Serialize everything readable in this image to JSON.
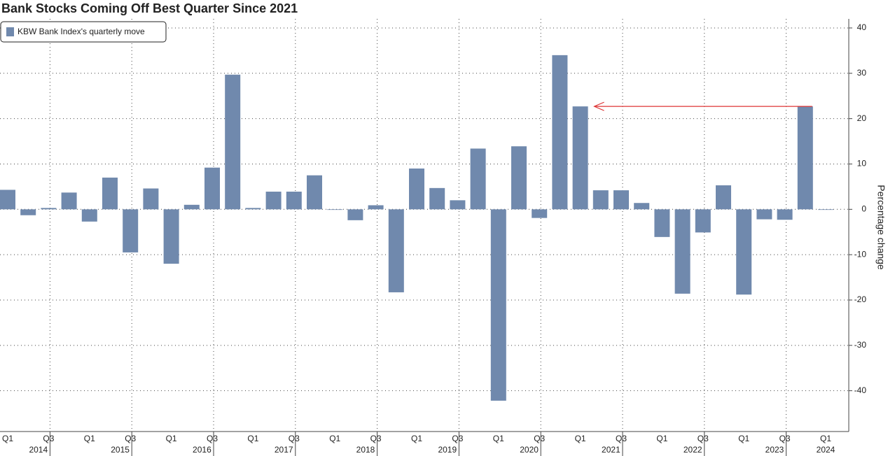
{
  "chart_data": {
    "type": "bar",
    "title": "Bank Stocks Coming Off Best Quarter Since 2021",
    "y_axis_label": "Percentage change",
    "categories": [
      "Q1",
      null,
      "Q3",
      null,
      "Q1",
      null,
      "Q3",
      null,
      "Q1",
      null,
      "Q3",
      null,
      "Q1",
      null,
      "Q3",
      null,
      "Q1",
      null,
      "Q3",
      null,
      "Q1",
      null,
      "Q3",
      null,
      "Q1",
      null,
      "Q3",
      null,
      "Q1",
      null,
      "Q3",
      null,
      "Q1",
      null,
      "Q3",
      null,
      "Q1",
      null,
      "Q3",
      null,
      "Q1"
    ],
    "years": [
      "2014",
      "2015",
      "2016",
      "2017",
      "2018",
      "2019",
      "2020",
      "2021",
      "2022",
      "2023",
      "2024"
    ],
    "series": [
      {
        "name": "KBW Bank Index's quarterly move",
        "color": "#7089ad",
        "values": [
          4.3,
          -1.3,
          0.3,
          3.7,
          -2.7,
          7.0,
          -9.5,
          4.6,
          -12.0,
          1.0,
          9.2,
          29.7,
          0.3,
          3.9,
          3.9,
          7.5,
          -0.1,
          -2.4,
          0.9,
          -18.3,
          9.0,
          4.7,
          2.0,
          13.4,
          -42.2,
          13.9,
          -1.9,
          34.0,
          22.7,
          4.2,
          4.2,
          1.4,
          -6.1,
          -18.6,
          -5.1,
          5.3,
          -18.8,
          -2.2,
          -2.3,
          22.7,
          -0.1
        ]
      }
    ],
    "ylim": [
      -49,
      42
    ],
    "yticks": [
      -40,
      -30,
      -20,
      -10,
      0,
      10,
      20,
      30,
      40
    ],
    "grid": true,
    "legend": "top-left"
  }
}
